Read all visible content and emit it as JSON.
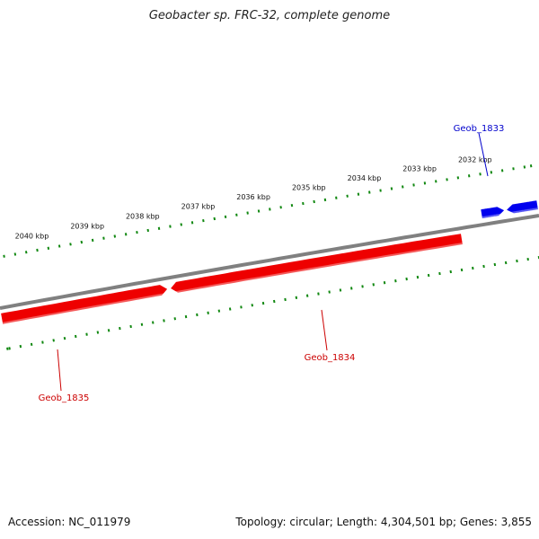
{
  "title": "Geobacter sp. FRC-32, complete genome",
  "footer": {
    "accession": "Accession: NC_011979",
    "summary": "Topology: circular; Length: 4,304,501 bp; Genes: 3,855"
  },
  "colors": {
    "backbone": "#808080",
    "forward_gene": "#0000ee",
    "reverse_gene": "#ee0000",
    "ticks": "#118811",
    "forward_label": "#0000cc",
    "reverse_label": "#cc0000"
  },
  "ticks": [
    "2032 kbp",
    "2033 kbp",
    "2034 kbp",
    "2035 kbp",
    "2036 kbp",
    "2037 kbp",
    "2038 kbp",
    "2039 kbp",
    "2040 kbp"
  ],
  "genes": [
    {
      "name": "Geob_1833",
      "strand": "forward"
    },
    {
      "name": "Geob_1834",
      "strand": "reverse"
    },
    {
      "name": "Geob_1835",
      "strand": "reverse"
    }
  ]
}
